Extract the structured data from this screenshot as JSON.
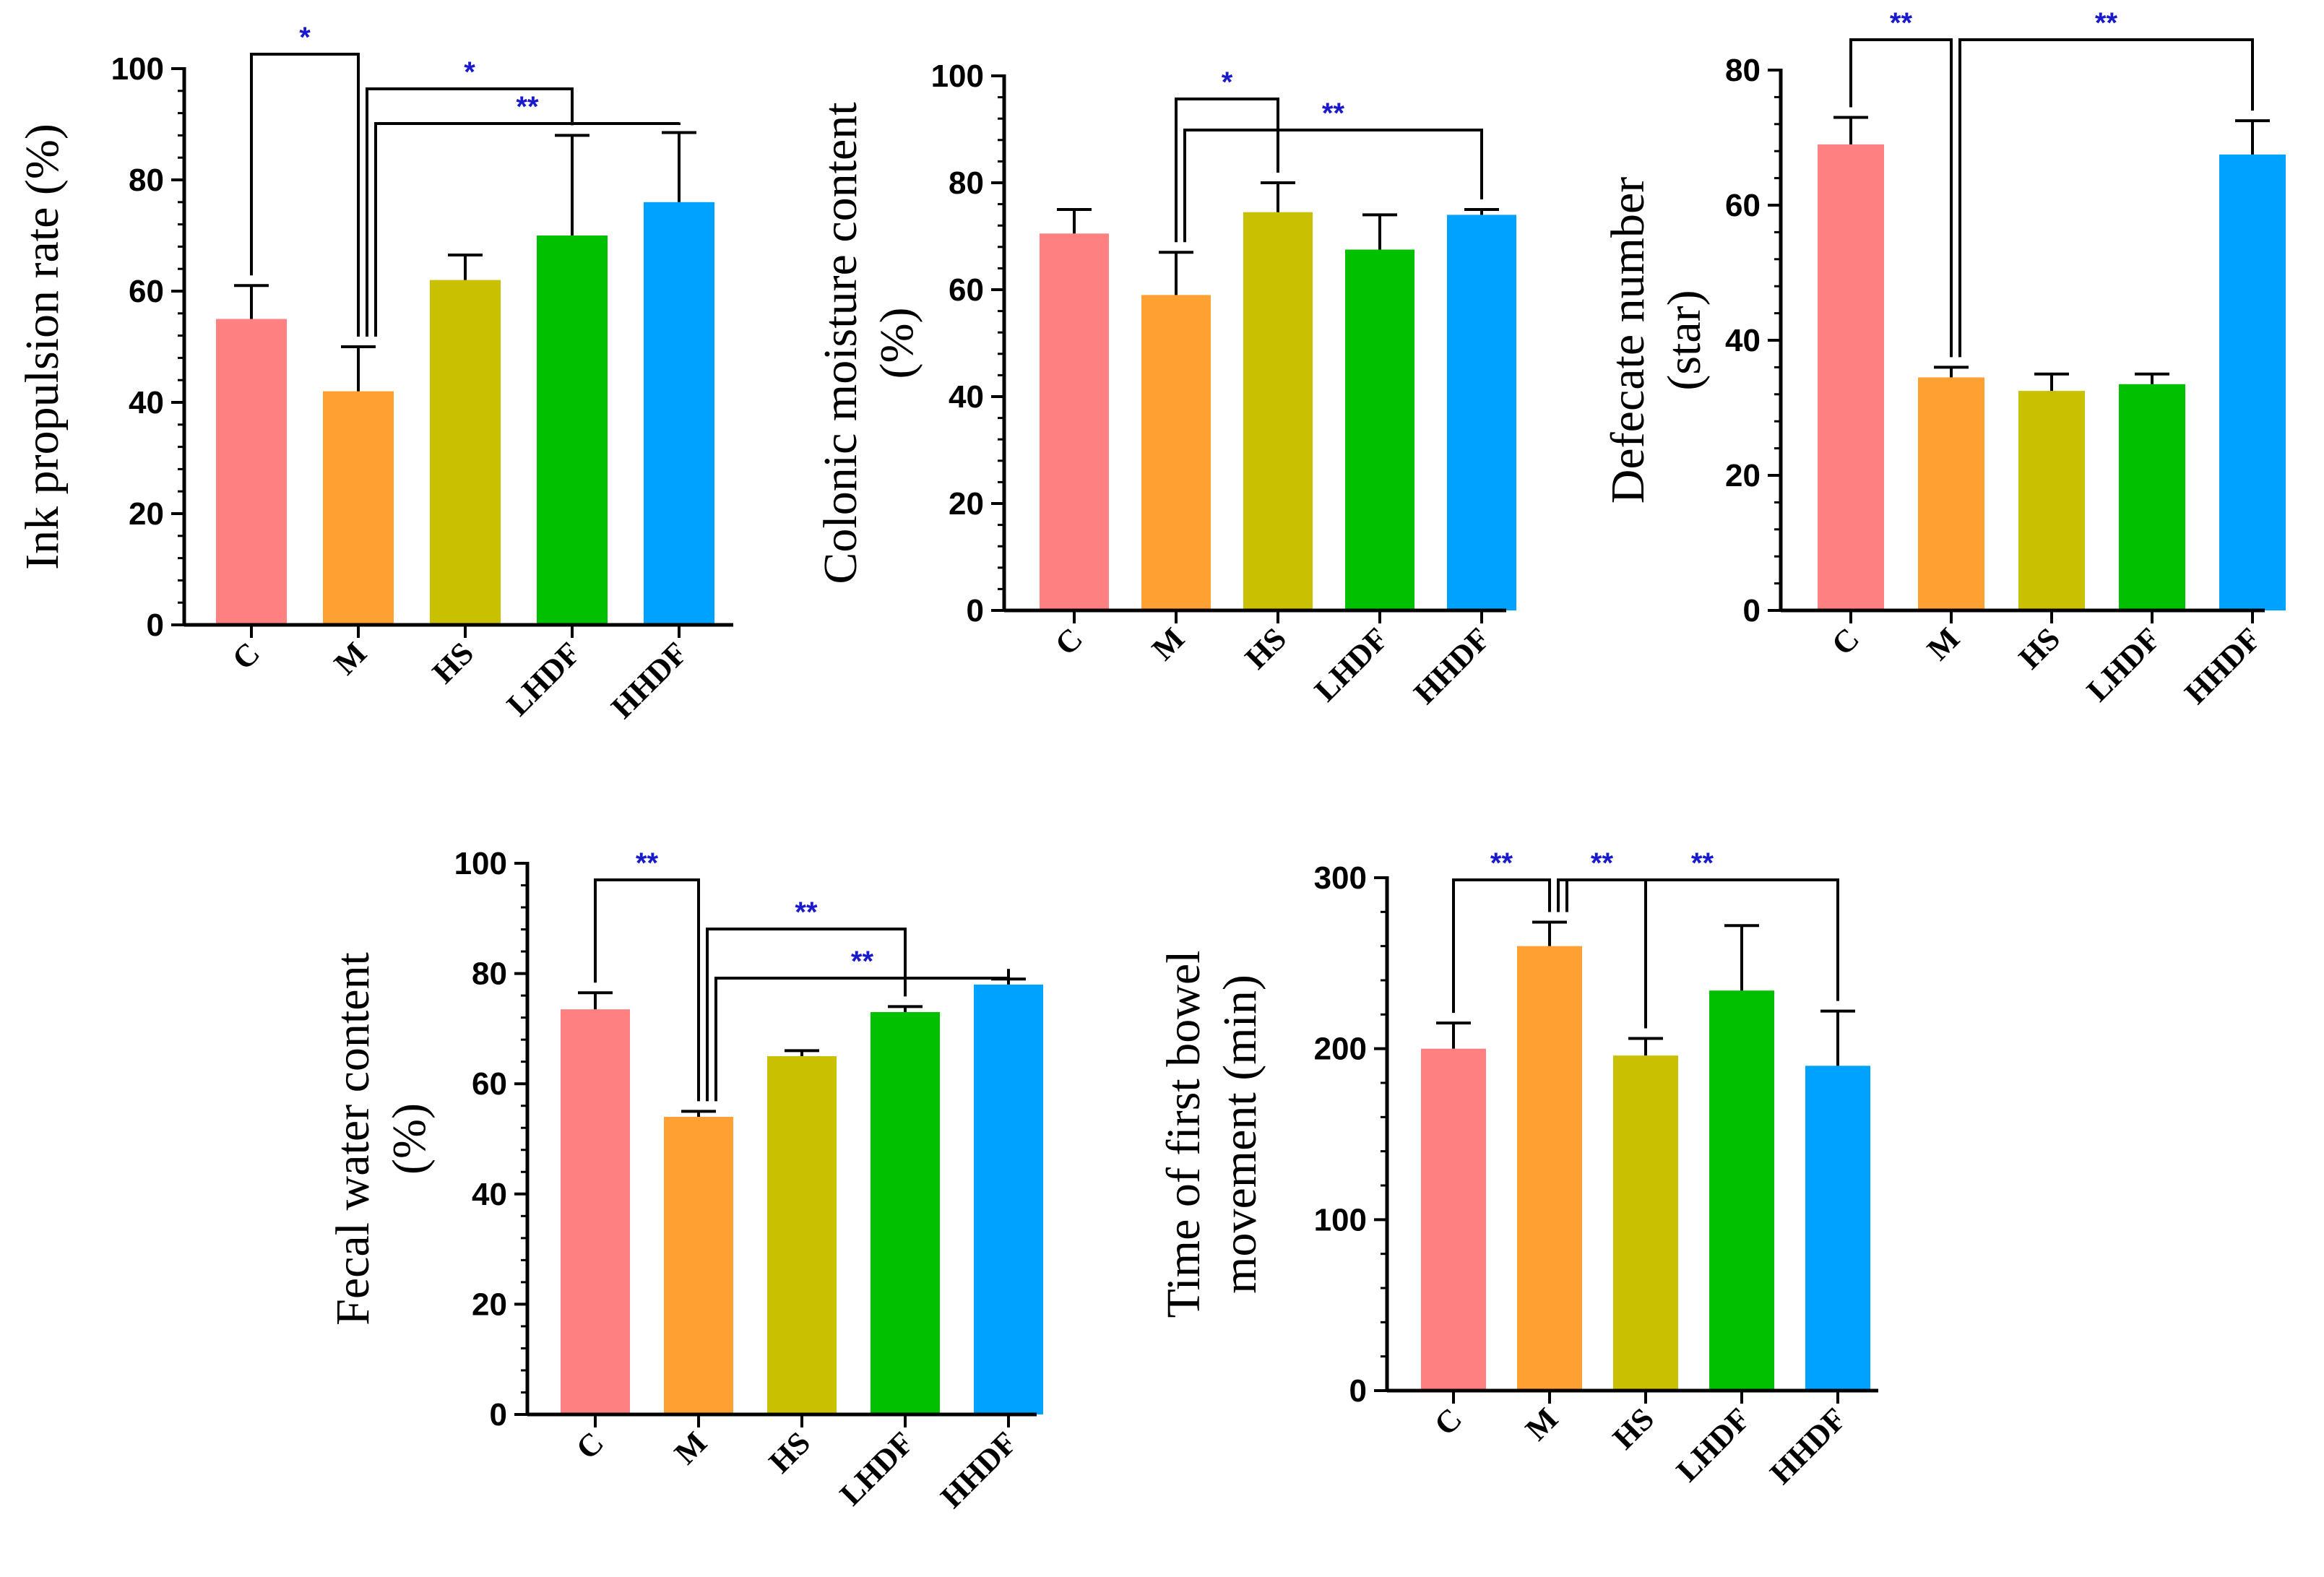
{
  "colors": {
    "C": "#ff8080",
    "M": "#ffa033",
    "HS": "#c8c000",
    "LHDF": "#00c000",
    "HHDF": "#00a2ff",
    "significance": "#1a1acc"
  },
  "chart_data": [
    {
      "type": "bar",
      "title": "",
      "xlabel": "",
      "ylabel": [
        "Ink propulsion rate (%)"
      ],
      "categories": [
        "C",
        "M",
        "HS",
        "LHDF",
        "HHDF"
      ],
      "values": [
        55,
        42,
        62,
        70,
        76
      ],
      "errors": [
        6,
        8,
        4.5,
        18,
        12.5
      ],
      "ylim": [
        0,
        100
      ],
      "yticks": [
        "0",
        "20",
        "40",
        "60",
        "80",
        "100"
      ],
      "significance": [
        {
          "from": 0,
          "to": 1,
          "label": "*"
        },
        {
          "from": 1,
          "to": 3,
          "label": "*"
        },
        {
          "from": 1,
          "to": 4,
          "label": "**"
        }
      ]
    },
    {
      "type": "bar",
      "title": "",
      "xlabel": "",
      "ylabel": [
        "Colonic moisture content",
        "(%)"
      ],
      "categories": [
        "C",
        "M",
        "HS",
        "LHDF",
        "HHDF"
      ],
      "values": [
        70.5,
        59,
        74.5,
        67.5,
        74
      ],
      "errors": [
        4.5,
        8,
        5.5,
        6.5,
        1
      ],
      "ylim": [
        0,
        100
      ],
      "yticks": [
        "0",
        "20",
        "40",
        "60",
        "80",
        "100"
      ],
      "significance": [
        {
          "from": 1,
          "to": 2,
          "label": "*"
        },
        {
          "from": 1,
          "to": 4,
          "label": "**"
        }
      ]
    },
    {
      "type": "bar",
      "title": "",
      "xlabel": "",
      "ylabel": [
        "Defecate number",
        "(star)"
      ],
      "categories": [
        "C",
        "M",
        "HS",
        "LHDF",
        "HHDF"
      ],
      "values": [
        69,
        34.5,
        32.5,
        33.5,
        67.5
      ],
      "errors": [
        4,
        1.5,
        2.5,
        1.5,
        5
      ],
      "ylim": [
        0,
        80
      ],
      "yticks": [
        "0",
        "20",
        "40",
        "60",
        "80"
      ],
      "significance": [
        {
          "from": 0,
          "to": 1,
          "label": "**"
        },
        {
          "from": 1,
          "to": 4,
          "label": "**"
        }
      ]
    },
    {
      "type": "bar",
      "title": "",
      "xlabel": "",
      "ylabel": [
        "Fecal water content",
        "(%)"
      ],
      "categories": [
        "C",
        "M",
        "HS",
        "LHDF",
        "HHDF"
      ],
      "values": [
        73.5,
        54,
        65,
        73,
        78
      ],
      "errors": [
        3,
        1,
        1,
        1,
        1
      ],
      "ylim": [
        0,
        100
      ],
      "yticks": [
        "0",
        "20",
        "40",
        "60",
        "80",
        "100"
      ],
      "significance": [
        {
          "from": 0,
          "to": 1,
          "label": "**"
        },
        {
          "from": 1,
          "to": 3,
          "label": "**"
        },
        {
          "from": 1,
          "to": 4,
          "label": "**"
        }
      ]
    },
    {
      "type": "bar",
      "title": "",
      "xlabel": "",
      "ylabel": [
        "Time of first bowel",
        "movement (min)"
      ],
      "categories": [
        "C",
        "M",
        "HS",
        "LHDF",
        "HHDF"
      ],
      "values": [
        200,
        260,
        196,
        234,
        190
      ],
      "errors": [
        15,
        14,
        10,
        38,
        32
      ],
      "ylim": [
        0,
        300
      ],
      "yticks": [
        "0",
        "100",
        "200",
        "300"
      ],
      "significance": [
        {
          "from": 0,
          "to": 1,
          "label": "**"
        },
        {
          "from": 1,
          "to": 2,
          "label": "**"
        },
        {
          "from": 1,
          "to": 4,
          "label": "**"
        }
      ]
    }
  ]
}
